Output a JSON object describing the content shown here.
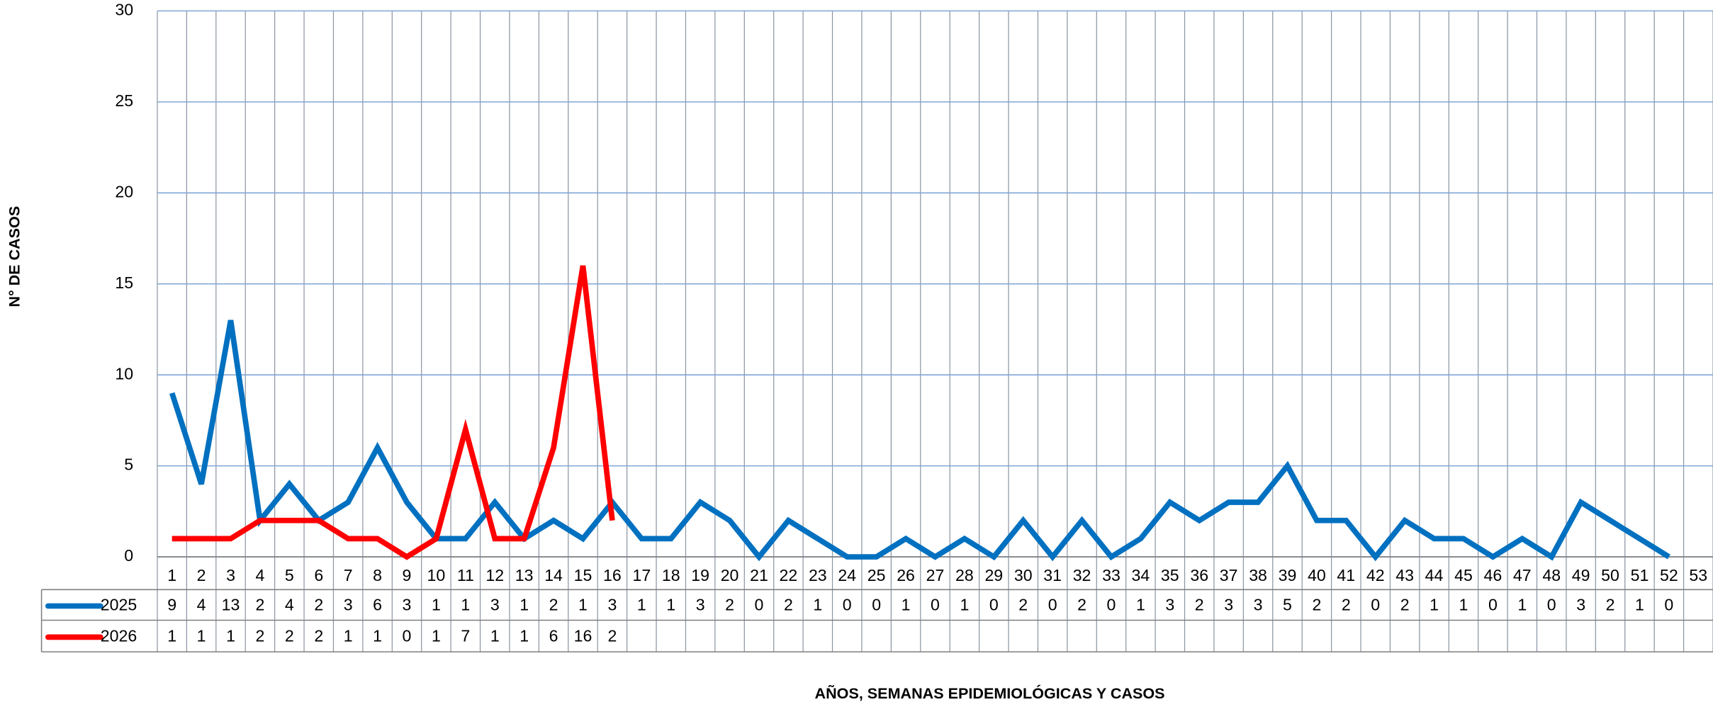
{
  "chart_data": {
    "type": "line",
    "ylabel": "N° DE CASOS",
    "xlabel": "AÑOS, SEMANAS EPIDEMIOLÓGICAS  Y CASOS",
    "categories": [
      "1",
      "2",
      "3",
      "4",
      "5",
      "6",
      "7",
      "8",
      "9",
      "10",
      "11",
      "12",
      "13",
      "14",
      "15",
      "16",
      "17",
      "18",
      "19",
      "20",
      "21",
      "22",
      "23",
      "24",
      "25",
      "26",
      "27",
      "28",
      "29",
      "30",
      "31",
      "32",
      "33",
      "34",
      "35",
      "36",
      "37",
      "38",
      "39",
      "40",
      "41",
      "42",
      "43",
      "44",
      "45",
      "46",
      "47",
      "48",
      "49",
      "50",
      "51",
      "52",
      "53"
    ],
    "series": [
      {
        "name": "2025",
        "color": "#0070c0",
        "values": [
          9,
          4,
          13,
          2,
          4,
          2,
          3,
          6,
          3,
          1,
          1,
          3,
          1,
          2,
          1,
          3,
          1,
          1,
          3,
          2,
          0,
          2,
          1,
          0,
          0,
          1,
          0,
          1,
          0,
          2,
          0,
          2,
          0,
          1,
          3,
          2,
          3,
          3,
          5,
          2,
          2,
          0,
          2,
          1,
          1,
          0,
          1,
          0,
          3,
          2,
          1,
          0,
          null
        ]
      },
      {
        "name": "2026",
        "color": "#ff0000",
        "values": [
          1,
          1,
          1,
          2,
          2,
          2,
          1,
          1,
          0,
          1,
          7,
          1,
          1,
          6,
          16,
          2,
          null,
          null,
          null,
          null,
          null,
          null,
          null,
          null,
          null,
          null,
          null,
          null,
          null,
          null,
          null,
          null,
          null,
          null,
          null,
          null,
          null,
          null,
          null,
          null,
          null,
          null,
          null,
          null,
          null,
          null,
          null,
          null,
          null,
          null,
          null,
          null,
          null
        ]
      }
    ],
    "ylim": [
      0,
      30
    ],
    "yticks": [
      0,
      5,
      10,
      15,
      20,
      25,
      30
    ],
    "grid": true
  }
}
